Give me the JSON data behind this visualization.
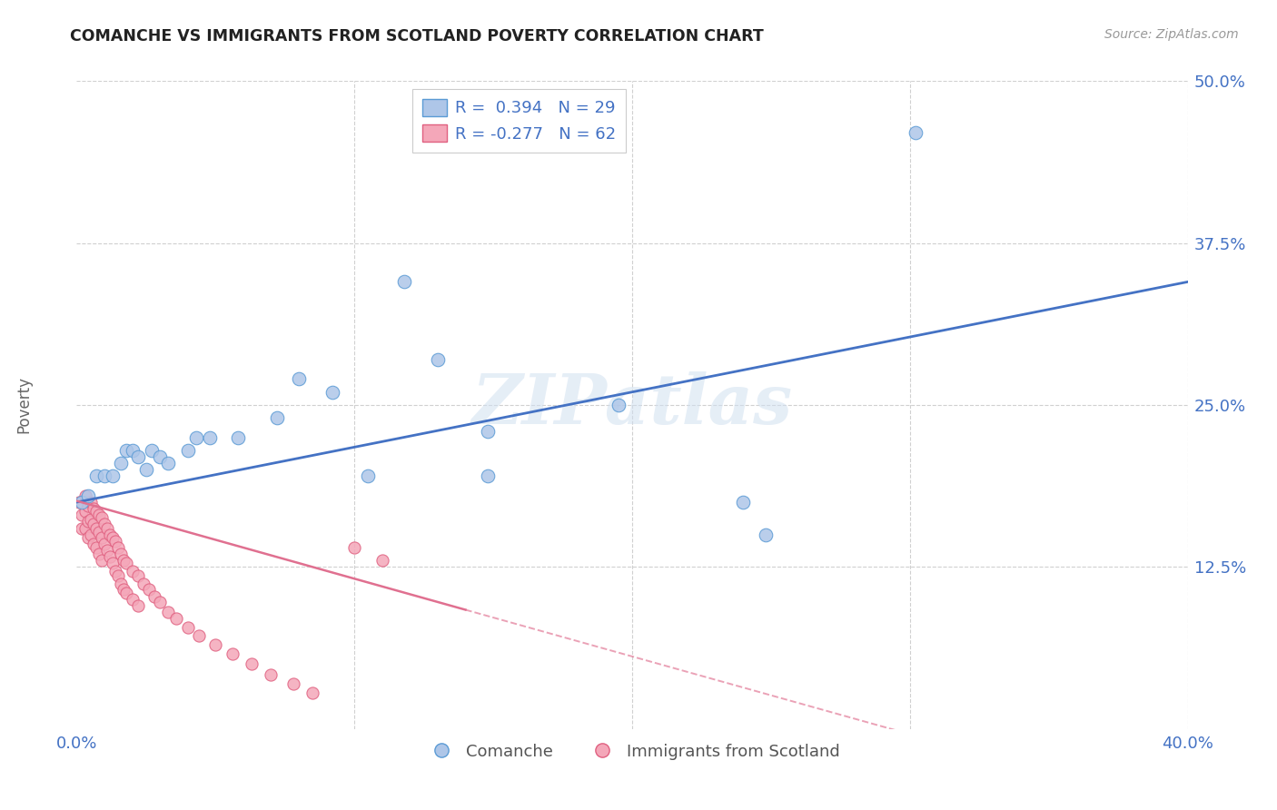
{
  "title": "COMANCHE VS IMMIGRANTS FROM SCOTLAND POVERTY CORRELATION CHART",
  "source": "Source: ZipAtlas.com",
  "ylabel": "Poverty",
  "xlim": [
    0.0,
    0.4
  ],
  "ylim": [
    0.0,
    0.5
  ],
  "xticks": [
    0.0,
    0.1,
    0.2,
    0.3,
    0.4
  ],
  "xticklabels": [
    "0.0%",
    "",
    "",
    "",
    "40.0%"
  ],
  "yticks": [
    0.0,
    0.125,
    0.25,
    0.375,
    0.5
  ],
  "yticklabels": [
    "",
    "12.5%",
    "25.0%",
    "37.5%",
    "50.0%"
  ],
  "comanche_r": 0.394,
  "comanche_n": 29,
  "scotland_r": -0.277,
  "scotland_n": 62,
  "watermark": "ZIPatlas",
  "blue_scatter_color": "#aec6e8",
  "blue_edge_color": "#5b9bd5",
  "pink_scatter_color": "#f4a7b9",
  "pink_edge_color": "#e06080",
  "blue_line_color": "#4472c4",
  "pink_line_color": "#e07090",
  "grid_color": "#d0d0d0",
  "bg_color": "#ffffff",
  "tick_color": "#4472c4",
  "comanche_points": [
    [
      0.002,
      0.175
    ],
    [
      0.004,
      0.18
    ],
    [
      0.007,
      0.195
    ],
    [
      0.01,
      0.195
    ],
    [
      0.013,
      0.195
    ],
    [
      0.016,
      0.205
    ],
    [
      0.018,
      0.215
    ],
    [
      0.02,
      0.215
    ],
    [
      0.022,
      0.21
    ],
    [
      0.025,
      0.2
    ],
    [
      0.027,
      0.215
    ],
    [
      0.03,
      0.21
    ],
    [
      0.033,
      0.205
    ],
    [
      0.04,
      0.215
    ],
    [
      0.043,
      0.225
    ],
    [
      0.048,
      0.225
    ],
    [
      0.058,
      0.225
    ],
    [
      0.072,
      0.24
    ],
    [
      0.08,
      0.27
    ],
    [
      0.092,
      0.26
    ],
    [
      0.105,
      0.195
    ],
    [
      0.118,
      0.345
    ],
    [
      0.13,
      0.285
    ],
    [
      0.148,
      0.23
    ],
    [
      0.148,
      0.195
    ],
    [
      0.195,
      0.25
    ],
    [
      0.24,
      0.175
    ],
    [
      0.248,
      0.15
    ],
    [
      0.302,
      0.46
    ]
  ],
  "scotland_points": [
    [
      0.001,
      0.175
    ],
    [
      0.002,
      0.165
    ],
    [
      0.002,
      0.155
    ],
    [
      0.003,
      0.18
    ],
    [
      0.003,
      0.168
    ],
    [
      0.003,
      0.155
    ],
    [
      0.004,
      0.172
    ],
    [
      0.004,
      0.16
    ],
    [
      0.004,
      0.148
    ],
    [
      0.005,
      0.175
    ],
    [
      0.005,
      0.162
    ],
    [
      0.005,
      0.15
    ],
    [
      0.006,
      0.17
    ],
    [
      0.006,
      0.158
    ],
    [
      0.006,
      0.143
    ],
    [
      0.007,
      0.168
    ],
    [
      0.007,
      0.155
    ],
    [
      0.007,
      0.14
    ],
    [
      0.008,
      0.165
    ],
    [
      0.008,
      0.152
    ],
    [
      0.008,
      0.135
    ],
    [
      0.009,
      0.163
    ],
    [
      0.009,
      0.148
    ],
    [
      0.009,
      0.13
    ],
    [
      0.01,
      0.158
    ],
    [
      0.01,
      0.143
    ],
    [
      0.011,
      0.155
    ],
    [
      0.011,
      0.138
    ],
    [
      0.012,
      0.15
    ],
    [
      0.012,
      0.133
    ],
    [
      0.013,
      0.148
    ],
    [
      0.013,
      0.128
    ],
    [
      0.014,
      0.145
    ],
    [
      0.014,
      0.122
    ],
    [
      0.015,
      0.14
    ],
    [
      0.015,
      0.118
    ],
    [
      0.016,
      0.135
    ],
    [
      0.016,
      0.112
    ],
    [
      0.017,
      0.13
    ],
    [
      0.017,
      0.108
    ],
    [
      0.018,
      0.128
    ],
    [
      0.018,
      0.105
    ],
    [
      0.02,
      0.122
    ],
    [
      0.02,
      0.1
    ],
    [
      0.022,
      0.118
    ],
    [
      0.022,
      0.095
    ],
    [
      0.024,
      0.112
    ],
    [
      0.026,
      0.108
    ],
    [
      0.028,
      0.102
    ],
    [
      0.03,
      0.098
    ],
    [
      0.033,
      0.09
    ],
    [
      0.036,
      0.085
    ],
    [
      0.04,
      0.078
    ],
    [
      0.044,
      0.072
    ],
    [
      0.05,
      0.065
    ],
    [
      0.056,
      0.058
    ],
    [
      0.063,
      0.05
    ],
    [
      0.07,
      0.042
    ],
    [
      0.078,
      0.035
    ],
    [
      0.085,
      0.028
    ],
    [
      0.1,
      0.14
    ],
    [
      0.11,
      0.13
    ]
  ]
}
